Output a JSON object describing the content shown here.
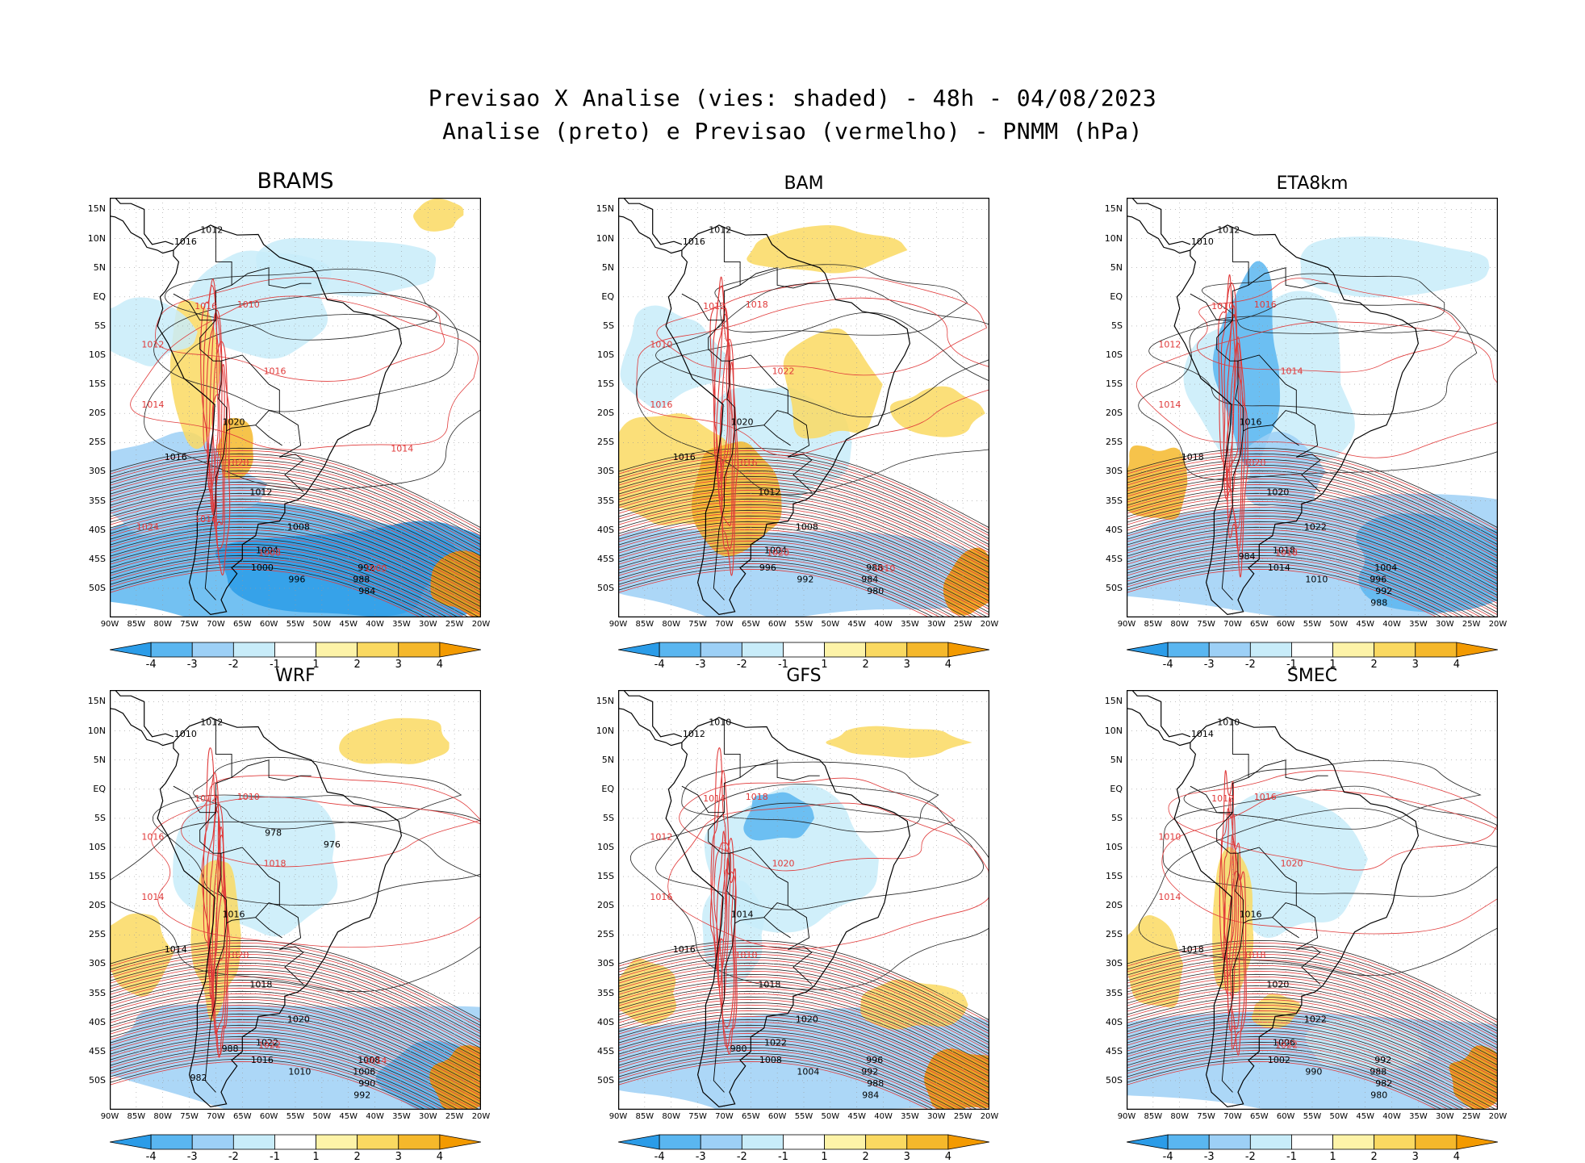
{
  "figure": {
    "title_line1": "Previsao X Analise (vies: shaded) - 48h - 04/08/2023",
    "title_line2": "Analise (preto) e Previsao (vermelho) - PNMM (hPa)"
  },
  "lat_labels": [
    "15N",
    "10N",
    "5N",
    "EQ",
    "5S",
    "10S",
    "15S",
    "20S",
    "25S",
    "30S",
    "35S",
    "40S",
    "45S",
    "50S"
  ],
  "lon_labels": [
    "90W",
    "85W",
    "80W",
    "75W",
    "70W",
    "65W",
    "60W",
    "55W",
    "50W",
    "45W",
    "40W",
    "35W",
    "30W",
    "25W",
    "20W"
  ],
  "colorbar": {
    "labels": [
      "-4",
      "-3",
      "-2",
      "-1",
      "1",
      "2",
      "3",
      "4"
    ],
    "colors": [
      "#2b9ce8",
      "#5ab6f0",
      "#9dd0f6",
      "#c8ecf9",
      "#ffffff",
      "#fdf3a8",
      "#fad961",
      "#f5b82b",
      "#f39a00"
    ]
  },
  "panels": [
    {
      "name": "BRAMS",
      "analysis_labels": [
        "1012",
        "1016",
        "1020",
        "1016",
        "1012",
        "1008",
        "1004",
        "1000",
        "996",
        "992",
        "988",
        "984"
      ],
      "forecast_labels": [
        "1014",
        "1012",
        "1016",
        "1010",
        "1016",
        "1020",
        "1008",
        "1000",
        "1014",
        "1024",
        "1016"
      ]
    },
    {
      "name": "BAM",
      "analysis_labels": [
        "1012",
        "1016",
        "1020",
        "1016",
        "1012",
        "1008",
        "1004",
        "996",
        "992",
        "988",
        "984",
        "980"
      ],
      "forecast_labels": [
        "1016",
        "1010",
        "1012",
        "1018",
        "1022",
        "1016",
        "1020",
        "1010"
      ]
    },
    {
      "name": "ETA8km",
      "analysis_labels": [
        "1012",
        "1010",
        "1016",
        "1018",
        "1020",
        "1022",
        "1018",
        "1014",
        "1010",
        "1004",
        "996",
        "992",
        "988",
        "984"
      ],
      "forecast_labels": [
        "1014",
        "1012",
        "1010",
        "1016",
        "1014",
        "1020",
        "1018"
      ]
    },
    {
      "name": "WRF",
      "analysis_labels": [
        "1012",
        "1010",
        "1016",
        "1014",
        "1018",
        "1020",
        "1022",
        "1016",
        "1010",
        "1008",
        "1006",
        "990",
        "992",
        "988",
        "982",
        "978",
        "976"
      ],
      "forecast_labels": [
        "1014",
        "1016",
        "1012",
        "1010",
        "1018",
        "1020",
        "1022",
        "1014"
      ]
    },
    {
      "name": "GFS",
      "analysis_labels": [
        "1010",
        "1012",
        "1014",
        "1016",
        "1018",
        "1020",
        "1022",
        "1008",
        "1004",
        "996",
        "992",
        "988",
        "984",
        "980"
      ],
      "forecast_labels": [
        "1016",
        "1012",
        "1014",
        "1018",
        "1020",
        "1010"
      ]
    },
    {
      "name": "SMEC",
      "analysis_labels": [
        "1010",
        "1014",
        "1016",
        "1018",
        "1020",
        "1022",
        "1006",
        "1002",
        "990",
        "992",
        "988",
        "982",
        "980"
      ],
      "forecast_labels": [
        "1014",
        "1010",
        "1012",
        "1016",
        "1020",
        "1018",
        "1022"
      ]
    }
  ]
}
